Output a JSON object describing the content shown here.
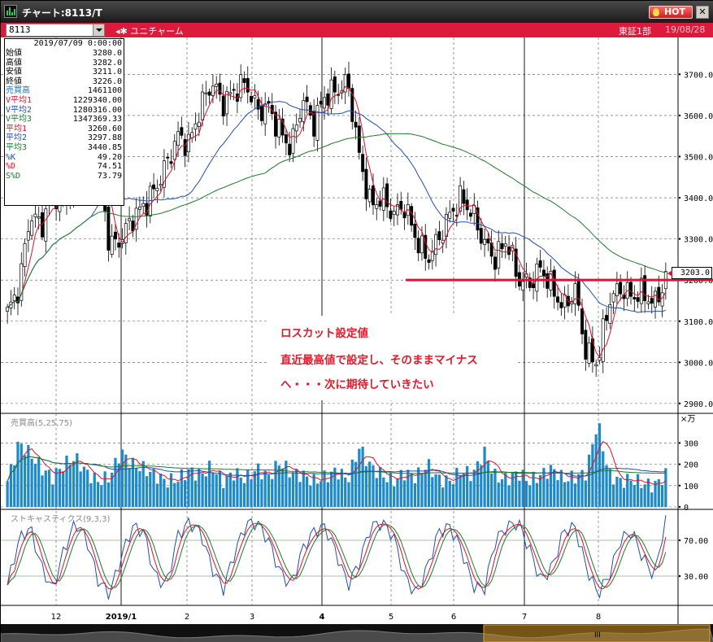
{
  "window": {
    "title": "チャート:8113/T",
    "hot_label": "HOT",
    "close_label": "✕"
  },
  "infobar": {
    "symbol": "8113",
    "company_name": "ユニチャーム",
    "market": "東証1部",
    "date": "19/08/28"
  },
  "data_panel": {
    "datetime": "2019/07/09 0:00:00",
    "rows": [
      {
        "key": "始値",
        "value": "3280.0",
        "color": "#000000"
      },
      {
        "key": "高値",
        "value": "3282.0",
        "color": "#000000"
      },
      {
        "key": "安値",
        "value": "3211.0",
        "color": "#000000"
      },
      {
        "key": "終値",
        "value": "3226.0",
        "color": "#000000"
      },
      {
        "key": "売買高",
        "value": "1461100",
        "color": "#1e6fa8"
      },
      {
        "key": "V平均1",
        "value": "1229340.00",
        "color": "#e0102a"
      },
      {
        "key": "V平均2",
        "value": "1280316.00",
        "color": "#1e4fb0"
      },
      {
        "key": "V平均3",
        "value": "1347369.33",
        "color": "#1e7a2a"
      },
      {
        "key": "平均1",
        "value": "3260.60",
        "color": "#e0102a"
      },
      {
        "key": "平均2",
        "value": "3297.88",
        "color": "#1e4fb0"
      },
      {
        "key": "平均3",
        "value": "3440.85",
        "color": "#1e7a2a"
      },
      {
        "key": "%K",
        "value": "49.20",
        "color": "#1e4fb0"
      },
      {
        "key": "%D",
        "value": "74.51",
        "color": "#e0102a"
      },
      {
        "key": "S%D",
        "value": "73.79",
        "color": "#1e7a2a"
      }
    ]
  },
  "annotation": {
    "line1": "ロスカット設定値",
    "line2": "直近最高値で設定し、そのままマイナス",
    "line3": "へ・・・次に期待していきたい"
  },
  "price_tag": "3203.0",
  "colors": {
    "accent": "#dc1a3c",
    "stoploss_line": "#e0103a",
    "ma1": "#e0102a",
    "ma2": "#1e4fb0",
    "ma3": "#1e7a2a",
    "volume_bar": "#1e8ac8"
  },
  "chart_data": [
    {
      "type": "candlestick",
      "title": "",
      "yaxis_labels": [
        "3700.0",
        "3600.0",
        "3500.0",
        "3400.0",
        "3300.0",
        "3200.0",
        "3100.0",
        "3000.0",
        "2900.0"
      ],
      "ylim": [
        2880,
        3760
      ],
      "xaxis_labels": [
        "12",
        "2019/1",
        "2",
        "3",
        "4",
        "5",
        "6",
        "7",
        "8"
      ],
      "stoploss_level": 3200,
      "close_path": [
        3120,
        3180,
        3360,
        3330,
        3420,
        3380,
        3450,
        3500,
        3490,
        3280,
        3300,
        3350,
        3380,
        3420,
        3480,
        3550,
        3530,
        3620,
        3680,
        3630,
        3660,
        3680,
        3610,
        3620,
        3560,
        3520,
        3640,
        3580,
        3650,
        3660,
        3680,
        3500,
        3380,
        3400,
        3360,
        3380,
        3300,
        3250,
        3300,
        3360,
        3400,
        3360,
        3290,
        3250,
        3300,
        3200,
        3190,
        3230,
        3180,
        3130,
        3180,
        3020,
        3000,
        3150,
        3180,
        3160,
        3170,
        3140,
        3203
      ],
      "series": [
        {
          "name": "平均1",
          "color": "#e0102a"
        },
        {
          "name": "平均2",
          "color": "#1e4fb0"
        },
        {
          "name": "平均3",
          "color": "#1e7a2a"
        }
      ]
    },
    {
      "type": "bar",
      "title": "売買高(5,25,75)",
      "unit": "×万",
      "yaxis_labels": [
        "300",
        "200",
        "100",
        "0"
      ],
      "ylim": [
        0,
        420
      ],
      "volume_path": [
        120,
        300,
        250,
        180,
        140,
        200,
        230,
        160,
        120,
        140,
        260,
        200,
        180,
        150,
        120,
        130,
        170,
        150,
        190,
        120,
        160,
        130,
        180,
        140,
        210,
        160,
        150,
        120,
        140,
        170,
        130,
        280,
        190,
        150,
        120,
        160,
        140,
        200,
        130,
        120,
        170,
        150,
        260,
        140,
        130,
        160,
        120,
        150,
        180,
        130,
        140,
        160,
        400,
        150,
        120,
        130,
        110,
        100,
        150
      ]
    },
    {
      "type": "line",
      "title": "ストキャスティクス(9,3,3)",
      "yaxis_labels": [
        "70.00",
        "30.00"
      ],
      "ylim": [
        0,
        100
      ],
      "series": [
        {
          "name": "%K",
          "color": "#1e4fb0"
        },
        {
          "name": "%D",
          "color": "#e0102a"
        },
        {
          "name": "S%D",
          "color": "#1e7a2a"
        }
      ],
      "k_path": [
        20,
        70,
        85,
        40,
        15,
        60,
        90,
        70,
        25,
        10,
        50,
        85,
        80,
        30,
        20,
        75,
        90,
        80,
        40,
        15,
        55,
        88,
        90,
        70,
        35,
        20,
        60,
        80,
        85,
        55,
        20,
        45,
        85,
        90,
        75,
        30,
        10,
        40,
        80,
        85,
        60,
        20,
        15,
        70,
        85,
        90,
        60,
        25,
        40,
        80,
        85,
        40,
        10,
        30,
        70,
        80,
        50,
        30,
        95
      ]
    }
  ]
}
